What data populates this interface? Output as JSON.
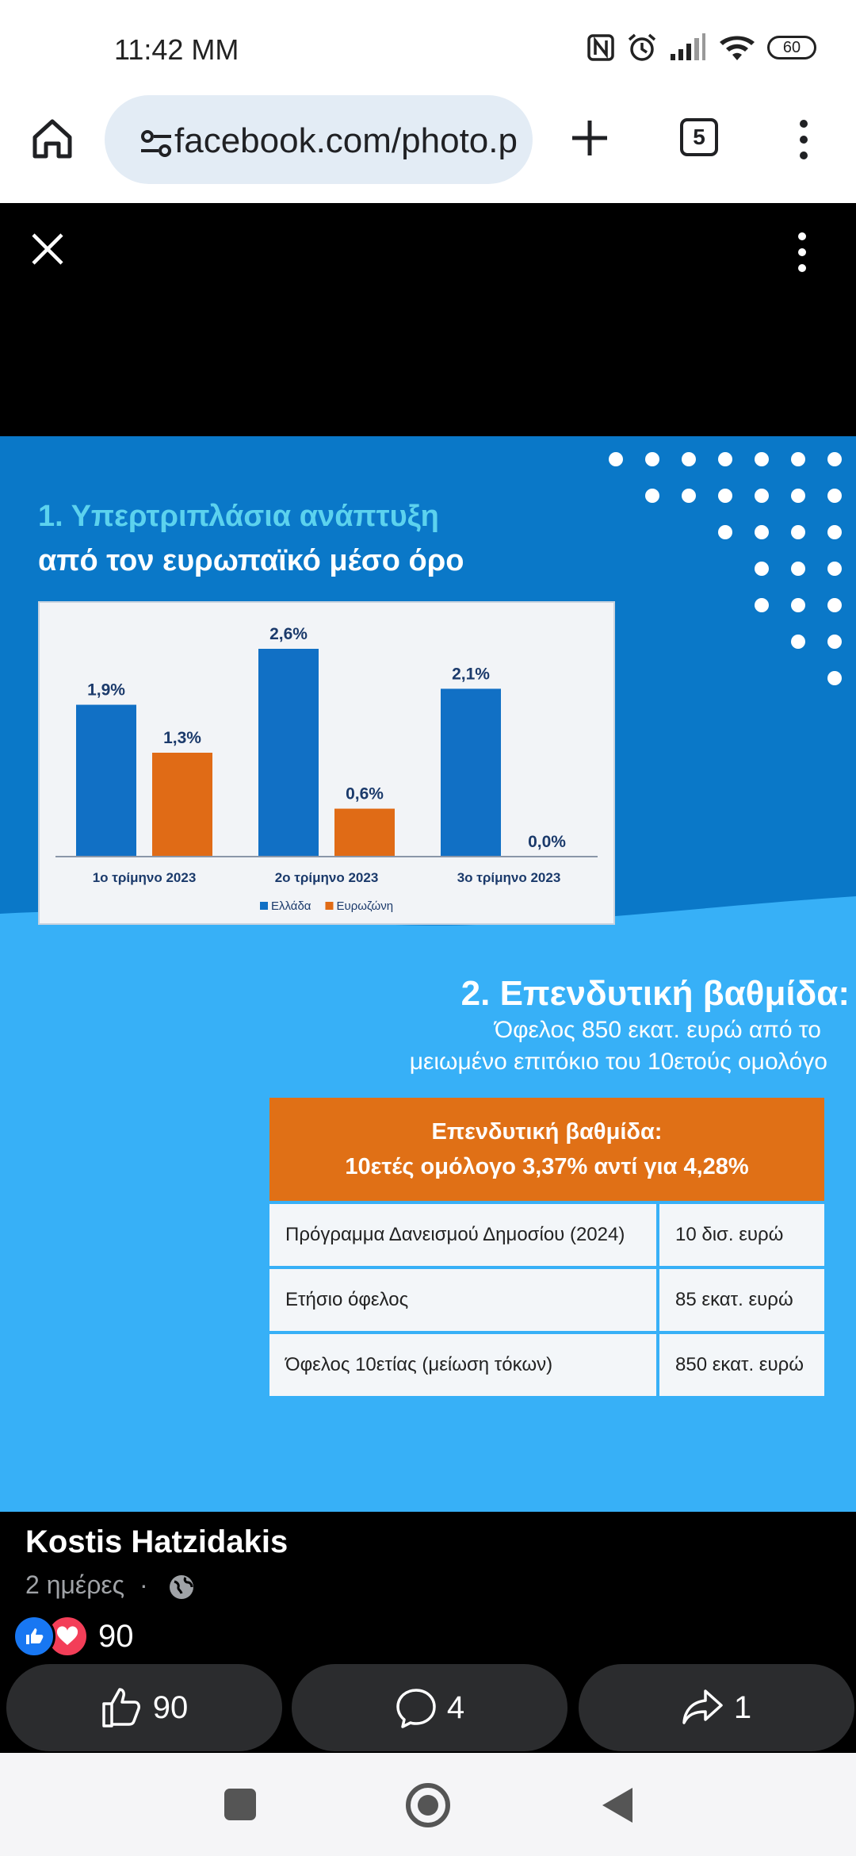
{
  "status_bar": {
    "time": "11:42 ΜΜ",
    "battery": "60"
  },
  "browser": {
    "url": "facebook.com/photo.php",
    "tab_count": "5"
  },
  "post_image": {
    "section1": {
      "title_line1": "1. Υπερτριπλάσια ανάπτυξη",
      "title_line2": "από τον ευρωπαϊκό μέσο όρο"
    },
    "section2": {
      "title": "2. Επενδυτική βαθμίδα:",
      "subtitle_line1": "Όφελος 850 εκατ. ευρώ από το",
      "subtitle_line2": "μειωμένο επιτόκιο του 10ετούς ομολόγο"
    },
    "table": {
      "header_line1": "Επενδυτική βαθμίδα:",
      "header_line2": "10ετές ομόλογο 3,37% αντί για 4,28%",
      "rows": [
        {
          "label": "Πρόγραμμα Δανεισμού Δημοσίου (2024)",
          "value": "10 δισ. ευρώ"
        },
        {
          "label": "Ετήσιο όφελος",
          "value": "85 εκατ. ευρώ"
        },
        {
          "label": "Όφελος 10ετίας (μείωση τόκων)",
          "value": "850 εκατ. ευρώ"
        }
      ]
    }
  },
  "chart_data": {
    "type": "bar",
    "categories": [
      "1ο τρίμηνο 2023",
      "2ο τρίμηνο 2023",
      "3ο τρίμηνο 2023"
    ],
    "series": [
      {
        "name": "Ελλάδα",
        "values": [
          1.9,
          2.6,
          2.1
        ],
        "labels": [
          "1,9%",
          "2,6%",
          "2,1%"
        ],
        "color": "#1170c5"
      },
      {
        "name": "Ευρωζώνη",
        "values": [
          1.3,
          0.6,
          0.0
        ],
        "labels": [
          "1,3%",
          "0,6%",
          "0,0%"
        ],
        "color": "#e06b16"
      }
    ],
    "legend": "bottom-center",
    "ylim": [
      0,
      2.6
    ],
    "grid": false
  },
  "post": {
    "author": "Kostis Hatzidakis",
    "time": "2 ημέρες",
    "separator": "·",
    "reaction_count": "90"
  },
  "actions": {
    "like_count": "90",
    "comment_count": "4",
    "share_count": "1"
  },
  "colors": {
    "accent_blue": "#1170c5",
    "accent_orange": "#e06b16",
    "light_blue_bg": "#37b0f7",
    "like_blue": "#1877f2",
    "love_red": "#f33e58"
  }
}
